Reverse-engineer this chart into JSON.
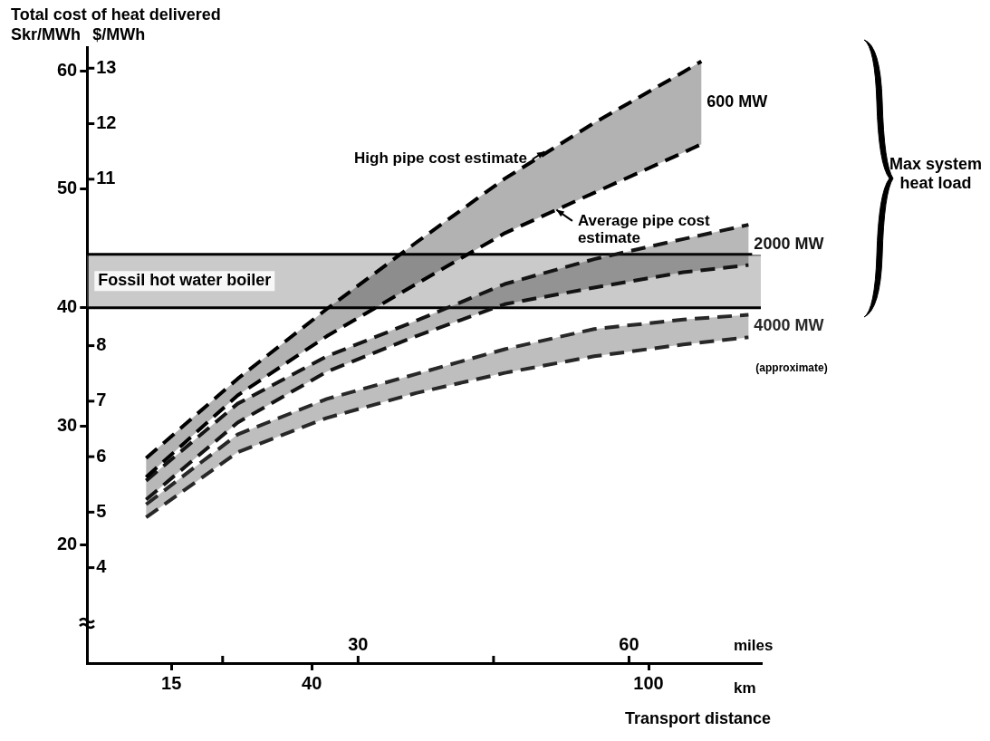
{
  "chart_data": {
    "type": "line",
    "title": "Total cost of heat delivered",
    "ylabel": "Skr/MWh",
    "y2label": "$/MWh",
    "xlabel": "km",
    "x2label": "miles",
    "x": [
      10.5,
      26.8,
      42.7,
      58.6,
      74.4,
      90.3,
      106.2,
      117.8
    ],
    "xlim": [
      0,
      120
    ],
    "xticks": [
      15,
      40,
      100
    ],
    "x2lim": [
      0,
      74.6
    ],
    "x2ticks": [
      {
        "value": 15,
        "label": null
      },
      30,
      {
        "value": 45,
        "label": null
      },
      60
    ],
    "ylim": [
      10,
      62
    ],
    "yticks": [
      20,
      30,
      40,
      50,
      60
    ],
    "y2lim": [
      2.28,
      13.38
    ],
    "y2ticks": [
      4,
      5,
      6,
      7,
      8,
      11,
      12,
      13
    ],
    "line_style": "dashed",
    "legend": false,
    "series": [
      {
        "name": "600 MW",
        "color": "#000000",
        "x": [
          10.5,
          26.8,
          42.7,
          58.6,
          74.4,
          90.3,
          106.2,
          109.4
        ],
        "values": [
          27.3,
          34.0,
          39.9,
          45.5,
          50.9,
          55.6,
          59.9,
          60.8
        ],
        "upper": [
          27.3,
          34.0,
          39.9,
          45.5,
          50.9,
          55.6,
          59.9,
          60.8
        ],
        "lower": [
          25.7,
          32.6,
          37.6,
          42.0,
          46.3,
          49.7,
          53.1,
          53.8
        ]
      },
      {
        "color": "#000000",
        "x": [
          10.5,
          26.8,
          42.7,
          58.6,
          74.4,
          90.3,
          106.2,
          109.4
        ],
        "values": [
          25.7,
          32.6,
          37.6,
          42.0,
          46.3,
          49.7,
          53.1,
          53.8
        ]
      },
      {
        "name": "2000 MW",
        "color": "#141414",
        "values": [
          25.4,
          31.9,
          35.9,
          38.9,
          42.0,
          44.1,
          45.8,
          47.0
        ],
        "upper": [
          25.4,
          31.9,
          35.9,
          38.9,
          42.0,
          44.1,
          45.8,
          47.0
        ],
        "lower": [
          23.8,
          30.3,
          34.6,
          37.6,
          40.3,
          41.7,
          43.0,
          43.6
        ]
      },
      {
        "color": "#141414",
        "values": [
          23.8,
          30.3,
          34.6,
          37.6,
          40.3,
          41.7,
          43.0,
          43.6
        ]
      },
      {
        "name": "4000 MW",
        "color": "#282828",
        "values": [
          23.4,
          29.3,
          32.3,
          34.4,
          36.5,
          38.2,
          39.0,
          39.4
        ],
        "upper": [
          23.4,
          29.3,
          32.3,
          34.4,
          36.5,
          38.2,
          39.0,
          39.4
        ],
        "lower": [
          22.3,
          27.8,
          30.7,
          32.8,
          34.5,
          35.9,
          36.9,
          37.5
        ]
      },
      {
        "color": "#282828",
        "values": [
          22.3,
          27.8,
          30.7,
          32.8,
          34.5,
          35.9,
          36.9,
          37.5
        ]
      }
    ],
    "bands": [
      {
        "axis": "y",
        "from": 40,
        "to": 44.5,
        "label": "Fossil hot water boiler",
        "color": "#8a8a8a"
      }
    ],
    "annotations": [
      {
        "text": "High pipe cost estimate",
        "x": 81.9,
        "y": 53.3
      },
      {
        "text": "Average pipe cost estimate",
        "x": 83.2,
        "y": 48.4
      },
      {
        "text": "(approximate)",
        "x": 117.8,
        "y": 37.5
      },
      "Max system heat load",
      "Transport distance"
    ]
  }
}
